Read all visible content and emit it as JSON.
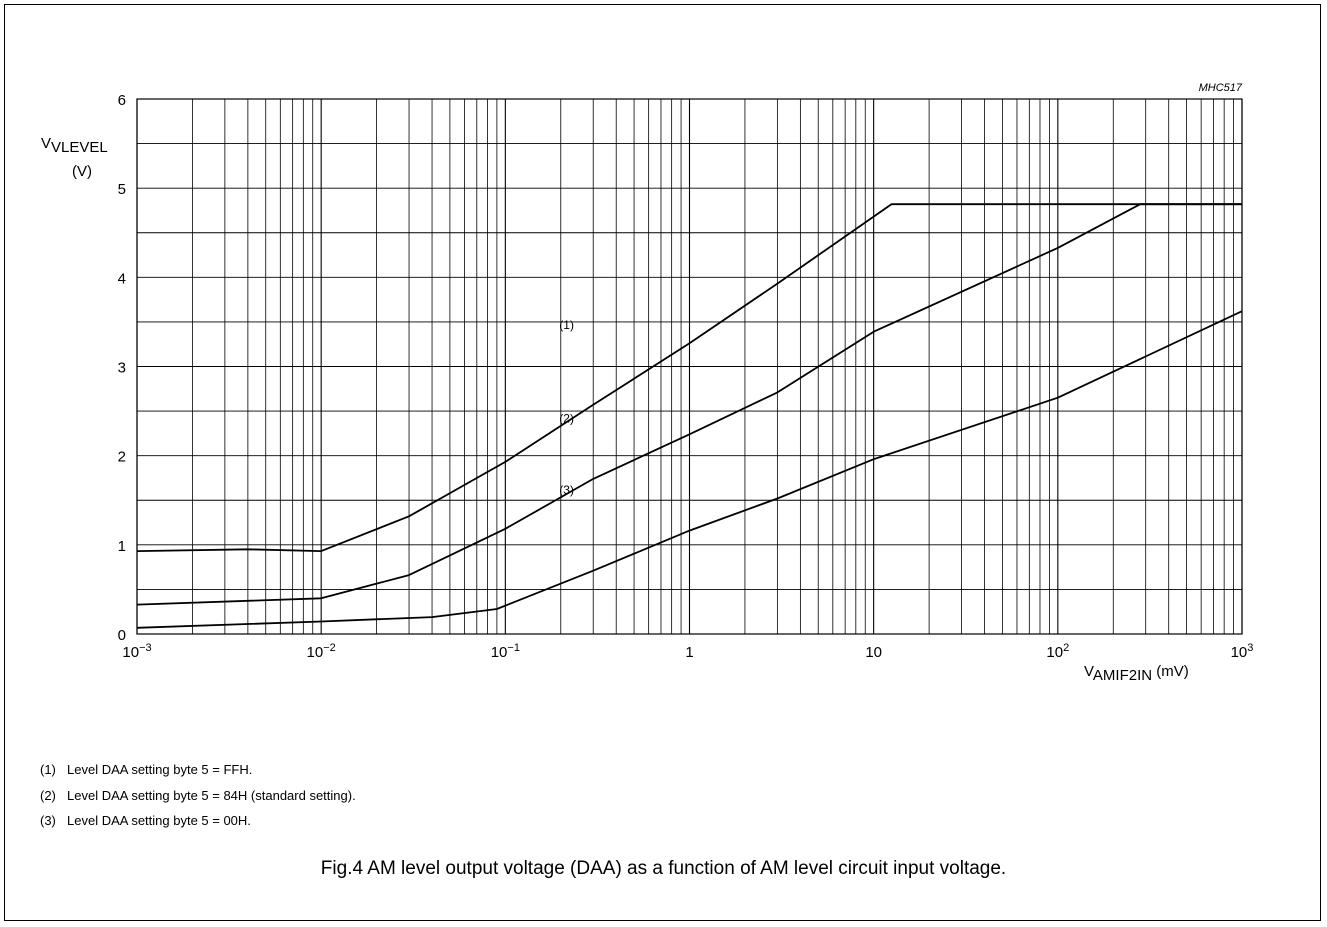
{
  "chart_data": {
    "type": "line",
    "x_scale": "log",
    "xlim": [
      0.001,
      1000
    ],
    "ylim": [
      0,
      6
    ],
    "figure_code": "MHC517",
    "y_label": {
      "main": "V",
      "sub": "VLEVEL",
      "unit": "(V)"
    },
    "x_label": {
      "main": "V",
      "sub": "AMIF2IN",
      "unit": "(mV)"
    },
    "y_ticks": [
      "0",
      "1",
      "2",
      "3",
      "4",
      "5",
      "6"
    ],
    "x_ticks": [
      {
        "base": "10",
        "exp": "−3"
      },
      {
        "base": "10",
        "exp": "−2"
      },
      {
        "base": "10",
        "exp": "−1"
      },
      {
        "base": "1",
        "exp": ""
      },
      {
        "base": "10",
        "exp": ""
      },
      {
        "base": "10",
        "exp": "2"
      },
      {
        "base": "10",
        "exp": "3"
      }
    ],
    "series": [
      {
        "name": "(1)",
        "x": [
          0.001,
          0.004,
          0.01,
          0.03,
          0.1,
          0.3,
          1,
          3,
          12.5,
          1000
        ],
        "y": [
          0.93,
          0.95,
          0.93,
          1.32,
          1.93,
          2.57,
          3.26,
          3.93,
          4.82,
          4.82
        ]
      },
      {
        "name": "(2)",
        "x": [
          0.001,
          0.01,
          0.03,
          0.1,
          0.3,
          1,
          3,
          10,
          100,
          280,
          1000
        ],
        "y": [
          0.33,
          0.4,
          0.66,
          1.18,
          1.74,
          2.24,
          2.71,
          3.39,
          4.33,
          4.82,
          4.82
        ]
      },
      {
        "name": "(3)",
        "x": [
          0.001,
          0.01,
          0.04,
          0.09,
          0.3,
          1,
          3,
          10,
          100,
          1000
        ],
        "y": [
          0.07,
          0.14,
          0.19,
          0.28,
          0.71,
          1.16,
          1.52,
          1.96,
          2.65,
          3.62
        ]
      }
    ]
  },
  "notes": [
    {
      "num": "(1)",
      "text": "Level DAA setting byte 5 = FFH."
    },
    {
      "num": "(2)",
      "text": "Level DAA setting byte 5 = 84H (standard setting)."
    },
    {
      "num": "(3)",
      "text": "Level DAA setting byte 5 = 00H."
    }
  ],
  "caption": "Fig.4  AM level output voltage (DAA) as a function of AM level circuit input voltage."
}
